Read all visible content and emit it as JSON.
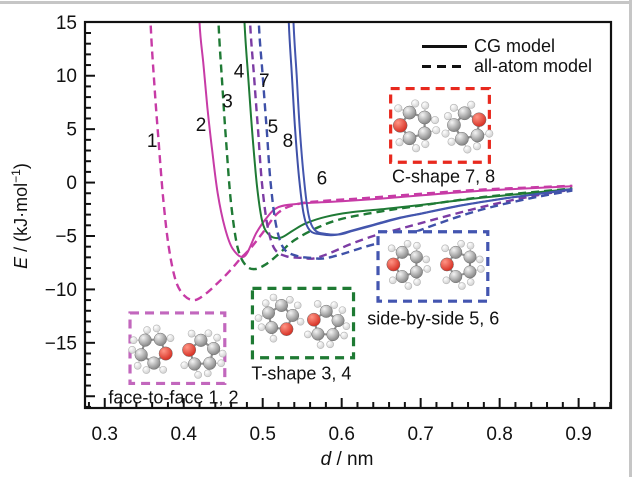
{
  "figure": {
    "background": "#ffffff",
    "frame_color": "#c6c6c6"
  },
  "chart_data": {
    "type": "line",
    "title": "",
    "xlabel": {
      "var": "d",
      "unit": " / nm"
    },
    "ylabel": {
      "var": "E",
      "mid": " / (kJ·mol",
      "sup": "−1",
      "close": ")"
    },
    "xlim": [
      0.275,
      0.941
    ],
    "ylim": [
      -21.1,
      15.03
    ],
    "grid": false,
    "x_ticks": {
      "major": [
        0.3,
        0.4,
        0.5,
        0.6,
        0.7,
        0.8,
        0.9
      ],
      "labels": [
        "0.3",
        "0.4",
        "0.5",
        "0.6",
        "0.7",
        "0.8",
        "0.9"
      ],
      "minor_step": 0.02
    },
    "y_ticks": {
      "major": [
        15,
        10,
        5,
        0,
        -5,
        -10,
        -15
      ],
      "labels": [
        "15",
        "10",
        "5",
        "0",
        "−5",
        "−10",
        "−15"
      ],
      "minor_step": 1
    },
    "legend": {
      "position": "top-right",
      "items": [
        {
          "label": "CG model",
          "style": "solid",
          "color": "#111111"
        },
        {
          "label": "all-atom model",
          "style": "dashed",
          "color": "#111111"
        }
      ]
    },
    "series": [
      {
        "id": 2,
        "label": "2",
        "configuration": "face-to-face",
        "model": "CG",
        "color": "#C73BA6",
        "line_style": "solid",
        "label_pos": [
          0.422,
          5.4
        ],
        "points": [
          [
            0.4175,
            22
          ],
          [
            0.42,
            15
          ],
          [
            0.425,
            11
          ],
          [
            0.43,
            7
          ],
          [
            0.436,
            3
          ],
          [
            0.443,
            -1
          ],
          [
            0.452,
            -4.2
          ],
          [
            0.462,
            -6.2
          ],
          [
            0.477,
            -6.9
          ],
          [
            0.492,
            -4.7
          ],
          [
            0.505,
            -3.3
          ],
          [
            0.52,
            -2.3
          ],
          [
            0.55,
            -1.95
          ],
          [
            0.6,
            -1.75
          ],
          [
            0.65,
            -1.5
          ],
          [
            0.7,
            -1.2
          ],
          [
            0.78,
            -0.75
          ],
          [
            0.892,
            -0.35
          ]
        ]
      },
      {
        "id": 1,
        "label": "1",
        "configuration": "face-to-face",
        "model": "all-atom",
        "color": "#C73BA6",
        "line_style": "dashed",
        "label_pos": [
          0.36,
          3.9
        ],
        "points": [
          [
            0.3555,
            22
          ],
          [
            0.358,
            15
          ],
          [
            0.363,
            9
          ],
          [
            0.368,
            4
          ],
          [
            0.374,
            -1.5
          ],
          [
            0.381,
            -6
          ],
          [
            0.39,
            -9.2
          ],
          [
            0.401,
            -10.6
          ],
          [
            0.414,
            -11.0
          ],
          [
            0.428,
            -10.4
          ],
          [
            0.443,
            -9.4
          ],
          [
            0.458,
            -8.3
          ],
          [
            0.472,
            -7.1
          ],
          [
            0.484,
            -6.2
          ],
          [
            0.5,
            -4.7
          ],
          [
            0.52,
            -2.8
          ],
          [
            0.545,
            -2.0
          ],
          [
            0.58,
            -1.7
          ],
          [
            0.63,
            -1.45
          ],
          [
            0.7,
            -1.05
          ],
          [
            0.78,
            -0.65
          ],
          [
            0.892,
            -0.3
          ]
        ]
      },
      {
        "id": 3,
        "label": "3",
        "configuration": "T-shape",
        "model": "all-atom",
        "color": "#1F7A35",
        "line_style": "dashed",
        "label_pos": [
          0.4555,
          7.6
        ],
        "points": [
          [
            0.4415,
            22
          ],
          [
            0.444,
            15
          ],
          [
            0.449,
            9
          ],
          [
            0.454,
            3.5
          ],
          [
            0.46,
            -2
          ],
          [
            0.468,
            -6
          ],
          [
            0.478,
            -7.7
          ],
          [
            0.49,
            -8.1
          ],
          [
            0.505,
            -7.6
          ],
          [
            0.52,
            -6.7
          ],
          [
            0.54,
            -5.4
          ],
          [
            0.57,
            -4.2
          ],
          [
            0.6,
            -3.4
          ],
          [
            0.65,
            -2.7
          ],
          [
            0.7,
            -2.15
          ],
          [
            0.78,
            -1.35
          ],
          [
            0.892,
            -0.55
          ]
        ]
      },
      {
        "id": 4,
        "label": "4",
        "configuration": "T-shape",
        "model": "CG",
        "color": "#1F7A35",
        "line_style": "solid",
        "label_pos": [
          0.47,
          10.4
        ],
        "points": [
          [
            0.4745,
            22
          ],
          [
            0.477,
            15
          ],
          [
            0.482,
            9.5
          ],
          [
            0.487,
            4.5
          ],
          [
            0.493,
            -0.5
          ],
          [
            0.5,
            -3.8
          ],
          [
            0.51,
            -5.0
          ],
          [
            0.523,
            -5.15
          ],
          [
            0.538,
            -4.5
          ],
          [
            0.555,
            -3.8
          ],
          [
            0.58,
            -3.2
          ],
          [
            0.61,
            -2.8
          ],
          [
            0.65,
            -2.5
          ],
          [
            0.7,
            -2.1
          ],
          [
            0.78,
            -1.4
          ],
          [
            0.892,
            -0.6
          ]
        ]
      },
      {
        "id": 7,
        "label": "7",
        "configuration": "C-shape",
        "model": "all-atom",
        "color": "#7C3CA4",
        "line_style": "dashed",
        "label_pos": [
          0.502,
          9.5
        ],
        "points": [
          [
            0.4815,
            22
          ],
          [
            0.484,
            15
          ],
          [
            0.489,
            10
          ],
          [
            0.494,
            5
          ],
          [
            0.499,
            0
          ],
          [
            0.506,
            -4
          ],
          [
            0.515,
            -6.2
          ],
          [
            0.53,
            -6.9
          ],
          [
            0.55,
            -7.05
          ],
          [
            0.565,
            -7.1
          ],
          [
            0.585,
            -6.6
          ],
          [
            0.61,
            -5.8
          ],
          [
            0.64,
            -5.0
          ],
          [
            0.67,
            -4.4
          ],
          [
            0.7,
            -3.8
          ],
          [
            0.75,
            -2.8
          ],
          [
            0.8,
            -1.9
          ],
          [
            0.85,
            -1.15
          ],
          [
            0.892,
            -0.65
          ]
        ]
      },
      {
        "id": 5,
        "label": "5",
        "configuration": "side-by-side",
        "model": "all-atom",
        "color": "#3F51A8",
        "line_style": "dashed",
        "label_pos": [
          0.513,
          5.2
        ],
        "points": [
          [
            0.4925,
            22
          ],
          [
            0.495,
            15
          ],
          [
            0.5,
            10
          ],
          [
            0.505,
            5
          ],
          [
            0.51,
            0
          ],
          [
            0.517,
            -4
          ],
          [
            0.527,
            -6.2
          ],
          [
            0.545,
            -6.9
          ],
          [
            0.562,
            -7.05
          ],
          [
            0.578,
            -7.1
          ],
          [
            0.6,
            -6.7
          ],
          [
            0.63,
            -6.0
          ],
          [
            0.66,
            -5.4
          ],
          [
            0.686,
            -4.8
          ],
          [
            0.72,
            -3.9
          ],
          [
            0.76,
            -2.9
          ],
          [
            0.8,
            -2.1
          ],
          [
            0.85,
            -1.3
          ],
          [
            0.892,
            -0.75
          ]
        ]
      },
      {
        "id": 8,
        "label": "8",
        "configuration": "C-shape",
        "model": "CG",
        "color": "#3F51A8",
        "line_style": "solid",
        "label_pos": [
          0.532,
          3.9
        ],
        "points": [
          [
            0.5305,
            22
          ],
          [
            0.533,
            15
          ],
          [
            0.537,
            10
          ],
          [
            0.541,
            5
          ],
          [
            0.546,
            0.5
          ],
          [
            0.552,
            -3
          ],
          [
            0.56,
            -4.5
          ],
          [
            0.575,
            -4.85
          ],
          [
            0.592,
            -4.9
          ],
          [
            0.61,
            -4.55
          ],
          [
            0.64,
            -3.95
          ],
          [
            0.67,
            -3.35
          ],
          [
            0.7,
            -2.9
          ],
          [
            0.75,
            -2.15
          ],
          [
            0.8,
            -1.55
          ],
          [
            0.85,
            -1.05
          ],
          [
            0.892,
            -0.65
          ]
        ]
      },
      {
        "id": 6,
        "label": "6",
        "configuration": "side-by-side",
        "model": "CG",
        "color": "#4456AE",
        "line_style": "solid",
        "label_pos": [
          0.575,
          0.4
        ],
        "points": [
          [
            0.5365,
            22
          ],
          [
            0.539,
            15
          ],
          [
            0.543,
            10
          ],
          [
            0.547,
            5
          ],
          [
            0.552,
            0.5
          ],
          [
            0.558,
            -3
          ],
          [
            0.566,
            -4.45
          ],
          [
            0.58,
            -4.8
          ],
          [
            0.598,
            -4.85
          ],
          [
            0.615,
            -4.5
          ],
          [
            0.645,
            -3.9
          ],
          [
            0.675,
            -3.3
          ],
          [
            0.705,
            -2.85
          ],
          [
            0.755,
            -2.1
          ],
          [
            0.805,
            -1.5
          ],
          [
            0.855,
            -1.0
          ],
          [
            0.892,
            -0.6
          ]
        ]
      }
    ],
    "annotations": [
      {
        "name": "face-to-face",
        "caption": "face-to-face 1, 2",
        "box_color": "#C267BD",
        "icon": "molecule-pair-face-to-face",
        "box_rect": {
          "x": [
            0.332,
            0.452
          ],
          "e": [
            -12.2,
            -18.8
          ]
        },
        "caption_pos": [
          0.387,
          -20.2
        ]
      },
      {
        "name": "t-shape",
        "caption": "T-shape 3, 4",
        "box_color": "#1E7A33",
        "icon": "molecule-pair-t-shape",
        "box_rect": {
          "x": [
            0.487,
            0.615
          ],
          "e": [
            -9.9,
            -16.4
          ]
        },
        "caption_pos": [
          0.549,
          -17.9
        ]
      },
      {
        "name": "side-by-side",
        "caption": "side-by-side 5, 6",
        "box_color": "#4355B0",
        "icon": "molecule-pair-side-by-side",
        "box_rect": {
          "x": [
            0.646,
            0.785
          ],
          "e": [
            -4.6,
            -11.1
          ]
        },
        "caption_pos": [
          0.716,
          -12.8
        ]
      },
      {
        "name": "c-shape",
        "caption": "C-shape 7, 8",
        "box_color": "#E8291E",
        "icon": "molecule-pair-c-shape",
        "box_rect": {
          "x": [
            0.662,
            0.787
          ],
          "e": [
            8.8,
            1.9
          ]
        },
        "caption_pos": [
          0.729,
          0.5
        ]
      }
    ],
    "atom_colors": {
      "oxygen": "#D42A1E",
      "carbon": "#9a9a9a",
      "hydrogen": "#e8e8e8"
    }
  }
}
